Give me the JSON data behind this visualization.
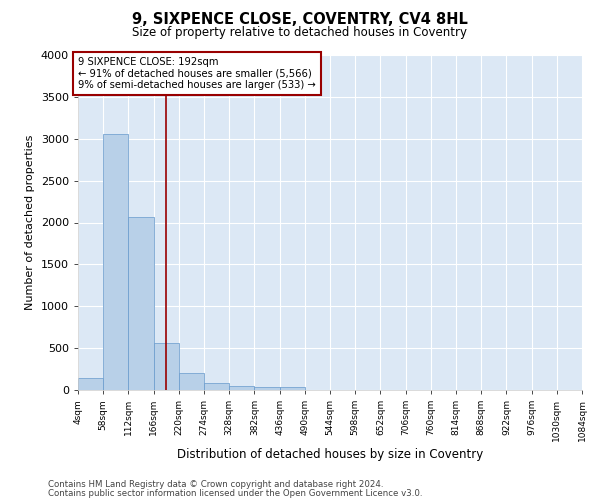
{
  "title": "9, SIXPENCE CLOSE, COVENTRY, CV4 8HL",
  "subtitle": "Size of property relative to detached houses in Coventry",
  "xlabel": "Distribution of detached houses by size in Coventry",
  "ylabel": "Number of detached properties",
  "bar_color": "#b8d0e8",
  "bar_edge_color": "#6699cc",
  "vline_value": 192,
  "vline_color": "#990000",
  "annotation_text": "9 SIXPENCE CLOSE: 192sqm\n← 91% of detached houses are smaller (5,566)\n9% of semi-detached houses are larger (533) →",
  "annotation_box_color": "#990000",
  "bins": [
    4,
    58,
    112,
    166,
    220,
    274,
    328,
    382,
    436,
    490,
    544,
    598,
    652,
    706,
    760,
    814,
    868,
    922,
    976,
    1030,
    1084
  ],
  "bin_labels": [
    "4sqm",
    "58sqm",
    "112sqm",
    "166sqm",
    "220sqm",
    "274sqm",
    "328sqm",
    "382sqm",
    "436sqm",
    "490sqm",
    "544sqm",
    "598sqm",
    "652sqm",
    "706sqm",
    "760sqm",
    "814sqm",
    "868sqm",
    "922sqm",
    "976sqm",
    "1030sqm",
    "1084sqm"
  ],
  "bar_heights": [
    140,
    3060,
    2060,
    560,
    200,
    80,
    50,
    30,
    40,
    0,
    0,
    0,
    0,
    0,
    0,
    0,
    0,
    0,
    0,
    0
  ],
  "ylim": [
    0,
    4000
  ],
  "yticks": [
    0,
    500,
    1000,
    1500,
    2000,
    2500,
    3000,
    3500,
    4000
  ],
  "footer_line1": "Contains HM Land Registry data © Crown copyright and database right 2024.",
  "footer_line2": "Contains public sector information licensed under the Open Government Licence v3.0.",
  "bg_color": "#dce8f5",
  "fig_bg_color": "#ffffff"
}
